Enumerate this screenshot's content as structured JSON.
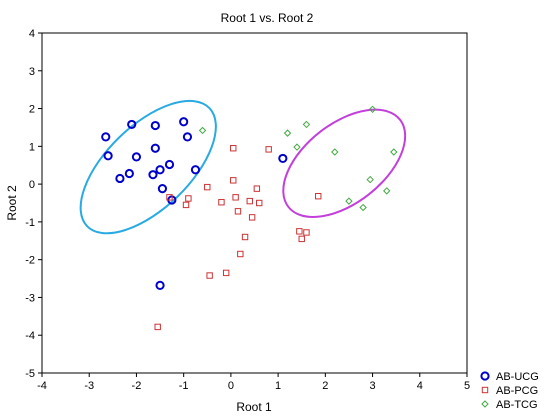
{
  "chart_data": {
    "type": "scatter",
    "title": "Root 1 vs. Root 2",
    "xlabel": "Root 1",
    "ylabel": "Root 2",
    "xlim": [
      -4,
      5
    ],
    "ylim": [
      -5,
      4
    ],
    "xticks": [
      -4,
      -3,
      -2,
      -1,
      0,
      1,
      2,
      3,
      4,
      5
    ],
    "yticks": [
      -5,
      -4,
      -3,
      -2,
      -1,
      0,
      1,
      2,
      3,
      4
    ],
    "grid": false,
    "legend_position": "bottom-right",
    "series": [
      {
        "name": "AB-UCG",
        "marker": "circle",
        "color": "#0000cc",
        "points": [
          [
            -2.65,
            1.25
          ],
          [
            -2.6,
            0.75
          ],
          [
            -2.35,
            0.15
          ],
          [
            -2.1,
            1.58
          ],
          [
            -2.15,
            0.28
          ],
          [
            -2.0,
            0.72
          ],
          [
            -1.6,
            1.55
          ],
          [
            -1.6,
            0.95
          ],
          [
            -1.65,
            0.25
          ],
          [
            -1.5,
            0.38
          ],
          [
            -1.45,
            -0.12
          ],
          [
            -1.3,
            0.52
          ],
          [
            -1.25,
            -0.42
          ],
          [
            -1.0,
            1.65
          ],
          [
            -0.92,
            1.25
          ],
          [
            -0.75,
            0.38
          ],
          [
            1.1,
            0.68
          ],
          [
            -1.5,
            -2.68
          ]
        ]
      },
      {
        "name": "AB-PCG",
        "marker": "square",
        "color": "#cc3333",
        "points": [
          [
            0.05,
            0.95
          ],
          [
            0.8,
            0.92
          ],
          [
            -1.3,
            -0.35
          ],
          [
            -0.95,
            -0.55
          ],
          [
            -0.9,
            -0.38
          ],
          [
            -0.5,
            -0.08
          ],
          [
            -0.2,
            -0.48
          ],
          [
            0.05,
            0.1
          ],
          [
            0.1,
            -0.35
          ],
          [
            0.15,
            -0.72
          ],
          [
            0.4,
            -0.45
          ],
          [
            0.45,
            -0.88
          ],
          [
            0.55,
            -0.12
          ],
          [
            0.6,
            -0.5
          ],
          [
            0.3,
            -1.4
          ],
          [
            0.2,
            -1.85
          ],
          [
            -0.1,
            -2.35
          ],
          [
            -0.45,
            -2.42
          ],
          [
            1.45,
            -1.25
          ],
          [
            1.5,
            -1.45
          ],
          [
            1.6,
            -1.28
          ],
          [
            1.85,
            -0.32
          ],
          [
            -1.55,
            -3.78
          ]
        ]
      },
      {
        "name": "AB-TCG",
        "marker": "diamond",
        "color": "#44aa44",
        "points": [
          [
            -0.6,
            1.42
          ],
          [
            1.2,
            1.35
          ],
          [
            1.4,
            0.98
          ],
          [
            1.6,
            1.58
          ],
          [
            2.2,
            0.85
          ],
          [
            2.5,
            -0.45
          ],
          [
            2.8,
            -0.62
          ],
          [
            2.95,
            0.12
          ],
          [
            3.0,
            1.98
          ],
          [
            3.3,
            -0.18
          ],
          [
            3.45,
            0.85
          ]
        ]
      }
    ],
    "ellipses": [
      {
        "series": "AB-UCG",
        "color": "#29aae2",
        "center": [
          -1.75,
          0.45
        ],
        "rx": 1.8,
        "ry": 1.1,
        "angle_deg": -44
      },
      {
        "series": "AB-TCG",
        "color": "#c33fdb",
        "center": [
          2.4,
          0.55
        ],
        "rx": 1.5,
        "ry": 1.05,
        "angle_deg": -38
      }
    ]
  }
}
